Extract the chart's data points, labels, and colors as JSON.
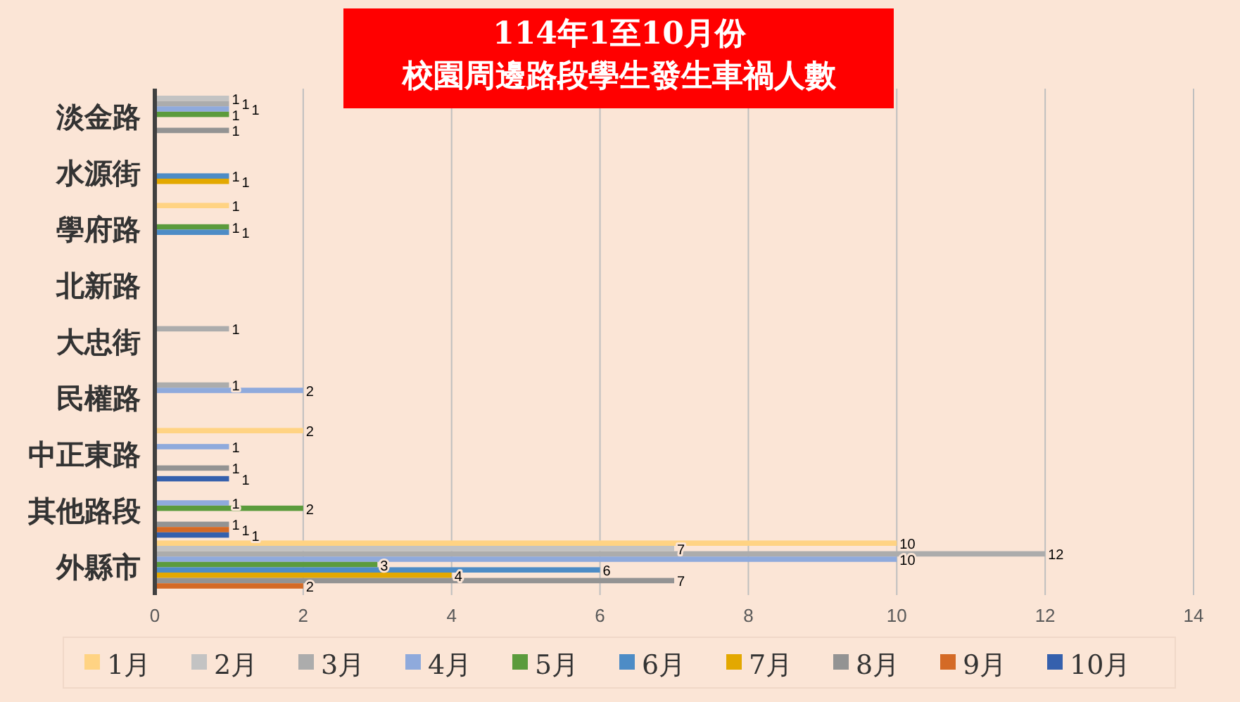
{
  "chart_data": {
    "type": "bar",
    "orientation": "horizontal",
    "title": "114年1至10月份",
    "subtitle": "校園周邊路段學生發生車禍人數",
    "categories": [
      "淡金路",
      "水源街",
      "學府路",
      "北新路",
      "大忠街",
      "民權路",
      "中正東路",
      "其他路段",
      "外縣市"
    ],
    "series": [
      {
        "name": "1月",
        "color": "#ffd383",
        "values": [
          null,
          null,
          1,
          null,
          null,
          null,
          2,
          null,
          10
        ]
      },
      {
        "name": "2月",
        "color": "#c3c3c3",
        "values": [
          1,
          null,
          null,
          null,
          null,
          null,
          null,
          null,
          7
        ]
      },
      {
        "name": "3月",
        "color": "#acacac",
        "values": [
          1,
          null,
          null,
          null,
          1,
          1,
          null,
          null,
          12
        ]
      },
      {
        "name": "4月",
        "color": "#8faadc",
        "values": [
          1,
          null,
          null,
          null,
          null,
          2,
          1,
          1,
          10
        ]
      },
      {
        "name": "5月",
        "color": "#5b9b3c",
        "values": [
          1,
          null,
          1,
          null,
          null,
          null,
          null,
          2,
          3
        ]
      },
      {
        "name": "6月",
        "color": "#4d8cc6",
        "values": [
          null,
          1,
          1,
          null,
          null,
          null,
          null,
          null,
          6
        ]
      },
      {
        "name": "7月",
        "color": "#e3a800",
        "values": [
          null,
          1,
          null,
          null,
          null,
          null,
          null,
          null,
          4
        ]
      },
      {
        "name": "8月",
        "color": "#939393",
        "values": [
          1,
          null,
          null,
          null,
          null,
          null,
          1,
          1,
          7
        ]
      },
      {
        "name": "9月",
        "color": "#d46a26",
        "values": [
          null,
          null,
          null,
          null,
          null,
          null,
          null,
          1,
          2
        ]
      },
      {
        "name": "10月",
        "color": "#3560ad",
        "values": [
          null,
          null,
          null,
          null,
          null,
          null,
          1,
          1,
          null
        ]
      }
    ],
    "xlim": [
      0,
      14
    ],
    "xticks": [
      0,
      2,
      4,
      6,
      8,
      10,
      12,
      14
    ],
    "grid": "x",
    "legend": "bottom",
    "data_labels": true
  }
}
